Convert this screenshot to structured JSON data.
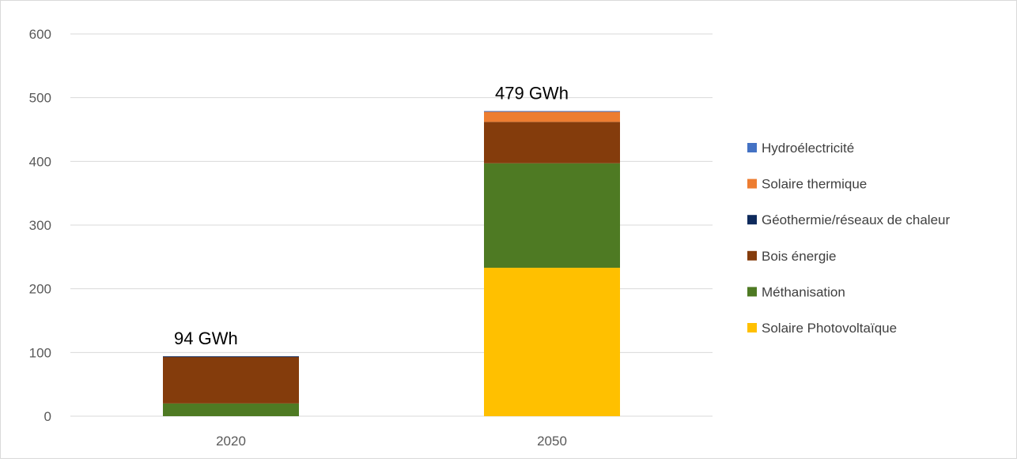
{
  "chart_data": {
    "type": "bar",
    "stacked": true,
    "title": "",
    "xlabel": "",
    "ylabel": "",
    "ylim": [
      0,
      600
    ],
    "yticks": [
      0,
      100,
      200,
      300,
      400,
      500,
      600
    ],
    "grid": true,
    "legend_position": "right",
    "categories": [
      "2020",
      "2050"
    ],
    "totals": [
      "94 GWh",
      "479 GWh"
    ],
    "series": [
      {
        "name": "Solaire Photovoltaïque",
        "color": "#FFC000",
        "values": [
          0,
          233
        ]
      },
      {
        "name": "Méthanisation",
        "color": "#4E7A23",
        "values": [
          20,
          164
        ]
      },
      {
        "name": "Bois énergie",
        "color": "#843C0C",
        "values": [
          73,
          65
        ]
      },
      {
        "name": "Géothermie/réseaux de chaleur",
        "color": "#0E2A5C",
        "values": [
          1,
          0
        ]
      },
      {
        "name": "Solaire thermique",
        "color": "#ED7D31",
        "values": [
          0,
          16
        ]
      },
      {
        "name": "Hydroélectricité",
        "color": "#4472C4",
        "values": [
          0,
          1
        ]
      }
    ]
  }
}
